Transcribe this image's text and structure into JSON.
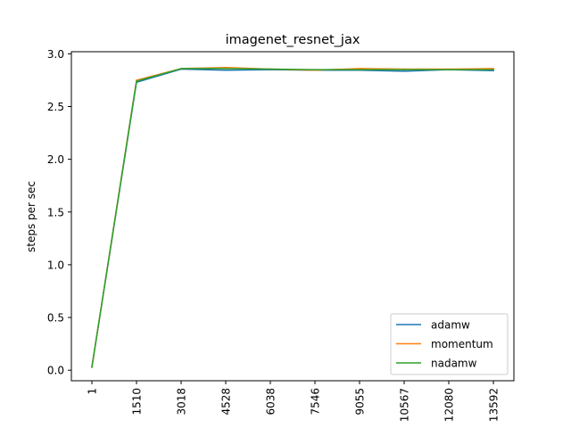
{
  "chart_data": {
    "type": "line",
    "title": "imagenet_resnet_jax",
    "xlabel": "",
    "ylabel": "steps per sec",
    "x": [
      1,
      1510,
      3018,
      4528,
      6038,
      7546,
      9055,
      10567,
      12080,
      13592
    ],
    "x_tick_labels": [
      "1",
      "1510",
      "3018",
      "4528",
      "6038",
      "7546",
      "9055",
      "10567",
      "12080",
      "13592"
    ],
    "x_axis_scale": "categorical, evenly spaced",
    "ylim": [
      -0.1,
      3.02
    ],
    "y_ticks": [
      0.0,
      0.5,
      1.0,
      1.5,
      2.0,
      2.5,
      3.0
    ],
    "y_tick_labels": [
      "0.0",
      "0.5",
      "1.0",
      "1.5",
      "2.0",
      "2.5",
      "3.0"
    ],
    "grid": false,
    "legend_position": "lower-right",
    "series": [
      {
        "name": "adamw",
        "color": "#1f77b4",
        "values": [
          0.03,
          2.73,
          2.855,
          2.845,
          2.85,
          2.845,
          2.845,
          2.835,
          2.85,
          2.84
        ]
      },
      {
        "name": "momentum",
        "color": "#ff7f0e",
        "values": [
          0.03,
          2.75,
          2.86,
          2.87,
          2.855,
          2.845,
          2.86,
          2.855,
          2.855,
          2.86
        ]
      },
      {
        "name": "nadamw",
        "color": "#2ca02c",
        "values": [
          0.03,
          2.74,
          2.86,
          2.86,
          2.855,
          2.85,
          2.85,
          2.85,
          2.85,
          2.85
        ]
      }
    ]
  }
}
